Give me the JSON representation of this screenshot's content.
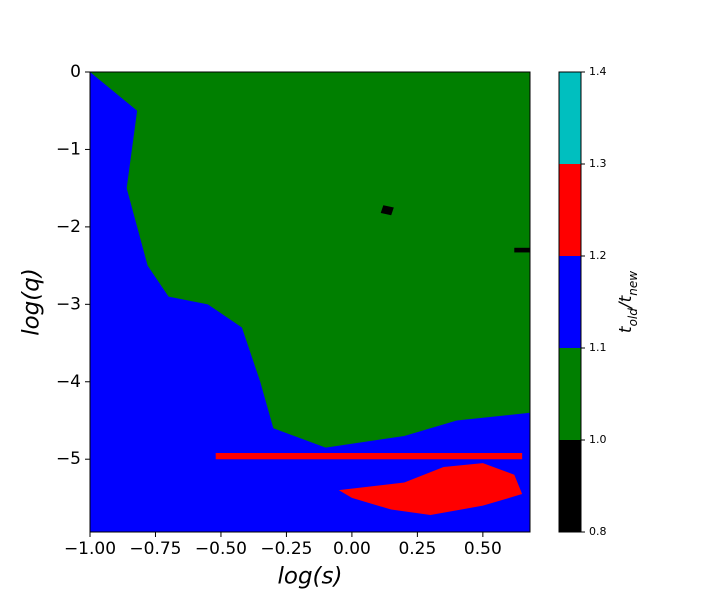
{
  "chart_data": {
    "type": "contour",
    "xlabel": "log(s)",
    "ylabel": "log(q)",
    "xlim": [
      -1.0,
      0.68
    ],
    "ylim": [
      -5.94,
      0
    ],
    "xticks": [
      {
        "value": -1.0,
        "label": "−1.00"
      },
      {
        "value": -0.75,
        "label": "−0.75"
      },
      {
        "value": -0.5,
        "label": "−0.50"
      },
      {
        "value": -0.25,
        "label": "−0.25"
      },
      {
        "value": 0,
        "label": "0.00"
      },
      {
        "value": 0.25,
        "label": "0.25"
      },
      {
        "value": 0.5,
        "label": "0.50"
      }
    ],
    "yticks": [
      0,
      {
        "value": -1,
        "label": "−1"
      },
      {
        "value": -2,
        "label": "−2"
      },
      {
        "value": -3,
        "label": "−3"
      },
      {
        "value": -4,
        "label": "−4"
      },
      {
        "value": -5,
        "label": "−5"
      }
    ],
    "colorbar": {
      "label": [
        "t",
        "old",
        "/",
        "t",
        "new"
      ],
      "levels": [
        0.8,
        {
          "value": 1,
          "label": "1.0"
        },
        1.1,
        1.2,
        1.3,
        1.4
      ],
      "colors": [
        "#000000",
        "#007f00",
        "#0000ff",
        "#ff0000",
        "#00bfbf"
      ]
    },
    "regions": [
      {
        "level": 1,
        "x": [
          -1.0,
          0.68,
          0.68,
          -1.0
        ],
        "y": [
          0,
          0,
          -5.94,
          -5.94
        ]
      },
      {
        "level": 1.1,
        "x": [
          -1.0,
          -0.82,
          -0.86,
          -0.78,
          -0.7,
          -0.55,
          -0.42,
          -0.35,
          -0.3,
          -0.1,
          0.2,
          0.4,
          0.68,
          0.68,
          -1.0
        ],
        "y": [
          0,
          -0.5,
          -1.5,
          -2.5,
          -2.9,
          -3.0,
          -3.3,
          -4.0,
          -4.6,
          -4.85,
          -4.7,
          -4.5,
          -4.4,
          -5.94,
          -5.94
        ]
      },
      {
        "level": 1.2,
        "x": [
          -0.52,
          0.65,
          0.65,
          -0.52
        ],
        "y": [
          -4.92,
          -4.92,
          -5.0,
          -5.0
        ]
      },
      {
        "level": 1.2,
        "x": [
          -0.05,
          0.2,
          0.35,
          0.5,
          0.62,
          0.65,
          0.5,
          0.3,
          0.15,
          0.0
        ],
        "y": [
          -5.4,
          -5.3,
          -5.1,
          -5.05,
          -5.2,
          -5.45,
          -5.6,
          -5.72,
          -5.65,
          -5.5
        ]
      },
      {
        "level": 0.8,
        "x": [
          0.12,
          0.16,
          0.15,
          0.11
        ],
        "y": [
          -1.72,
          -1.75,
          -1.85,
          -1.82
        ]
      },
      {
        "level": 0.8,
        "x": [
          0.62,
          0.68,
          0.68,
          0.62
        ],
        "y": [
          -2.27,
          -2.27,
          -2.33,
          -2.33
        ]
      }
    ]
  }
}
